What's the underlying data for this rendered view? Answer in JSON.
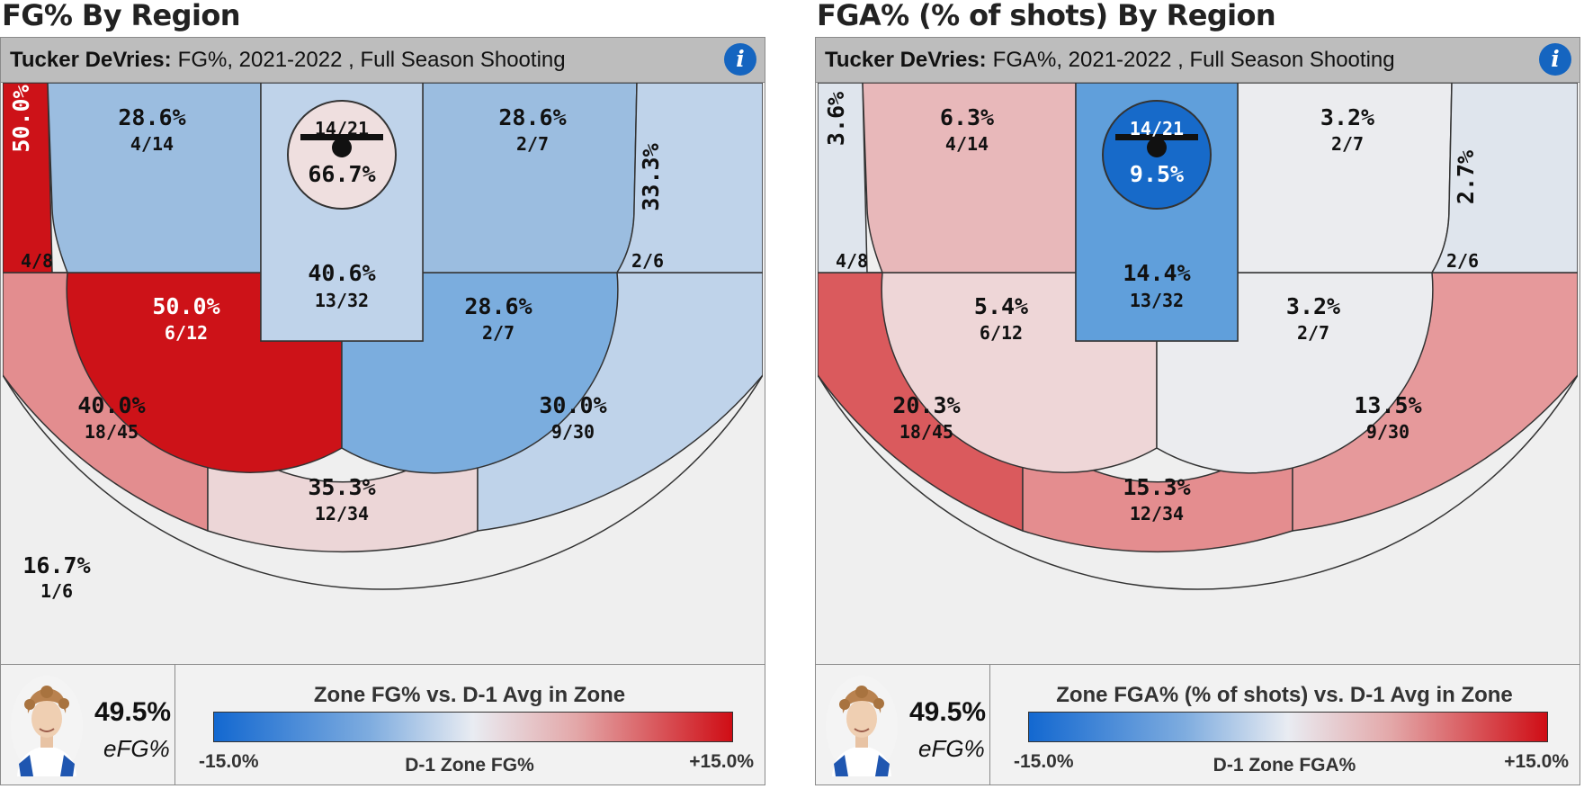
{
  "panels": [
    {
      "section_title": "FG% By Region",
      "player": "Tucker DeVries:",
      "subtitle": "FG%, 2021-2022 , Full Season Shooting",
      "info_icon": "info-icon",
      "efg_value": "49.5%",
      "efg_label": "eFG%",
      "legend": {
        "title": "Zone FG% vs. D-1 Avg in Zone",
        "min": "-15.0%",
        "max": "+15.0%",
        "axis": "D-1 Zone FG%"
      }
    },
    {
      "section_title": "FGA% (% of shots) By Region",
      "player": "Tucker DeVries:",
      "subtitle": "FGA%, 2021-2022 , Full Season Shooting",
      "info_icon": "info-icon",
      "efg_value": "49.5%",
      "efg_label": "eFG%",
      "legend": {
        "title": "Zone FGA% (% of shots) vs. D-1 Avg in Zone",
        "min": "-15.0%",
        "max": "+15.0%",
        "axis": "D-1 Zone FGA%"
      }
    }
  ],
  "chart_data": [
    {
      "type": "heatmap",
      "title": "FG% By Region",
      "metric": "FG%",
      "colorscale": {
        "min_label": "-15.0%",
        "max_label": "+15.0%",
        "low_color": "#1368d0",
        "mid_color": "#e9ecf2",
        "high_color": "#cf0d15"
      },
      "zones": [
        {
          "zone": "left-corner-three",
          "pct": "50.0%",
          "made_att": "4/8",
          "color": "#cd1218",
          "text_color": "#ffffff"
        },
        {
          "zone": "left-baseline-mid",
          "pct": "28.6%",
          "made_att": "4/14",
          "color": "#9bbde0",
          "text_color": "#111111"
        },
        {
          "zone": "rim",
          "pct": "66.7%",
          "made_att": "14/21",
          "color": "#efdfdf",
          "text_color": "#111111"
        },
        {
          "zone": "paint",
          "pct": "40.6%",
          "made_att": "13/32",
          "color": "#bfd3ea",
          "text_color": "#111111"
        },
        {
          "zone": "right-baseline-mid",
          "pct": "28.6%",
          "made_att": "2/7",
          "color": "#9bbde0",
          "text_color": "#111111"
        },
        {
          "zone": "right-corner-three",
          "pct": "33.3%",
          "made_att": "2/6",
          "color": "#bfd3ea",
          "text_color": "#111111"
        },
        {
          "zone": "left-elbow-mid",
          "pct": "50.0%",
          "made_att": "6/12",
          "color": "#cd1218",
          "text_color": "#ffffff"
        },
        {
          "zone": "right-elbow-mid",
          "pct": "28.6%",
          "made_att": "2/7",
          "color": "#7badde",
          "text_color": "#111111"
        },
        {
          "zone": "left-wing-three",
          "pct": "40.0%",
          "made_att": "18/45",
          "color": "#e38d8f",
          "text_color": "#111111"
        },
        {
          "zone": "top-three",
          "pct": "35.3%",
          "made_att": "12/34",
          "color": "#ecd6d7",
          "text_color": "#111111"
        },
        {
          "zone": "right-wing-three",
          "pct": "30.0%",
          "made_att": "9/30",
          "color": "#bfd3ea",
          "text_color": "#111111"
        },
        {
          "zone": "backcourt",
          "pct": "16.7%",
          "made_att": "1/6",
          "color": "#efefef",
          "text_color": "#111111"
        }
      ]
    },
    {
      "type": "heatmap",
      "title": "FGA% (% of shots) By Region",
      "metric": "FGA%",
      "colorscale": {
        "min_label": "-15.0%",
        "max_label": "+15.0%",
        "low_color": "#1368d0",
        "mid_color": "#e9ecf2",
        "high_color": "#cf0d15"
      },
      "zones": [
        {
          "zone": "left-corner-three",
          "pct": "3.6%",
          "made_att": "4/8",
          "color": "#dfe5ed",
          "text_color": "#111111"
        },
        {
          "zone": "left-baseline-mid",
          "pct": "6.3%",
          "made_att": "4/14",
          "color": "#e8b8ba",
          "text_color": "#111111"
        },
        {
          "zone": "rim",
          "pct": "9.5%",
          "made_att": "14/21",
          "color": "#176ac9",
          "text_color": "#ffffff"
        },
        {
          "zone": "paint",
          "pct": "14.4%",
          "made_att": "13/32",
          "color": "#609fdb",
          "text_color": "#111111"
        },
        {
          "zone": "right-baseline-mid",
          "pct": "3.2%",
          "made_att": "2/7",
          "color": "#ebecef",
          "text_color": "#111111"
        },
        {
          "zone": "right-corner-three",
          "pct": "2.7%",
          "made_att": "2/6",
          "color": "#dfe5ed",
          "text_color": "#111111"
        },
        {
          "zone": "left-elbow-mid",
          "pct": "5.4%",
          "made_att": "6/12",
          "color": "#eed6d7",
          "text_color": "#111111"
        },
        {
          "zone": "right-elbow-mid",
          "pct": "3.2%",
          "made_att": "2/7",
          "color": "#ebecef",
          "text_color": "#111111"
        },
        {
          "zone": "left-wing-three",
          "pct": "20.3%",
          "made_att": "18/45",
          "color": "#da5a5d",
          "text_color": "#111111"
        },
        {
          "zone": "top-three",
          "pct": "15.3%",
          "made_att": "12/34",
          "color": "#e48d8f",
          "text_color": "#111111"
        },
        {
          "zone": "right-wing-three",
          "pct": "13.5%",
          "made_att": "9/30",
          "color": "#e6999b",
          "text_color": "#111111"
        },
        {
          "zone": "backcourt",
          "pct": "",
          "made_att": "",
          "color": "#efefef",
          "text_color": "#111111"
        }
      ]
    }
  ]
}
